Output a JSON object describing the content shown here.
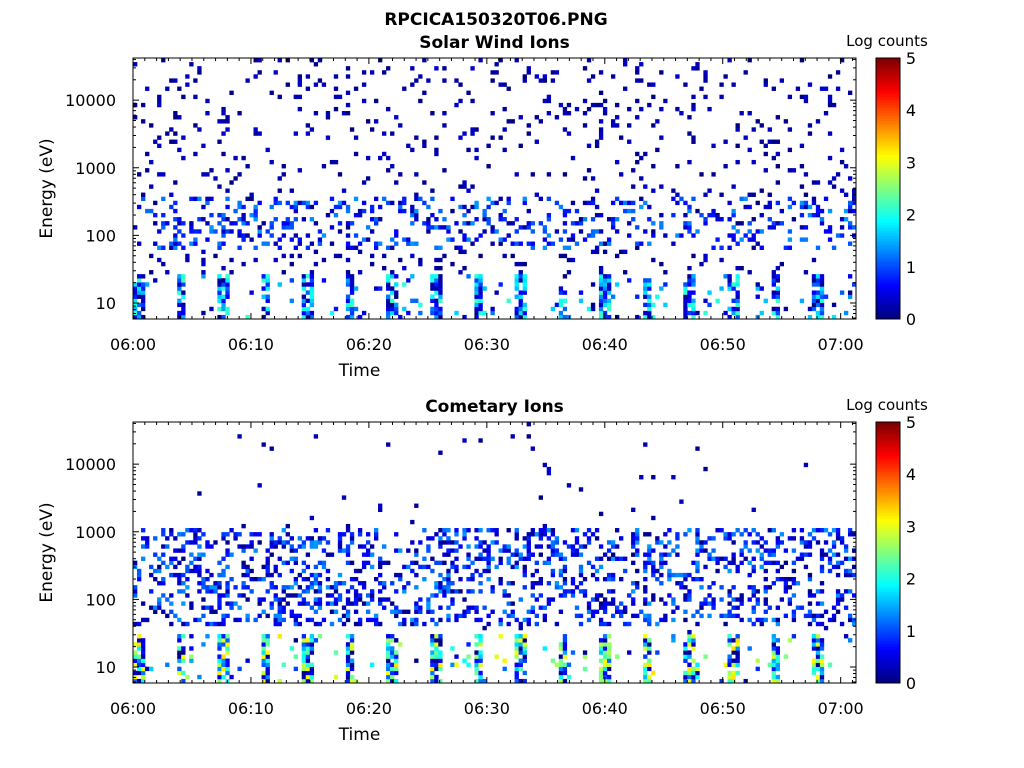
{
  "figure_title": "RPCICA150320T06.PNG",
  "chart_data": [
    {
      "type": "heatmap",
      "title": "Solar Wind Ions",
      "xlabel": "Time",
      "ylabel": "Energy (eV)",
      "x_ticks": [
        "06:00",
        "06:10",
        "06:20",
        "06:30",
        "06:40",
        "06:50",
        "07:00"
      ],
      "x_range_minutes": [
        0,
        61.3
      ],
      "y_scale": "log",
      "y_range_eV": [
        5.8,
        42000
      ],
      "y_ticks": [
        10,
        100,
        1000,
        10000
      ],
      "y_tick_labels": [
        "10",
        "100",
        "1000",
        "10000"
      ],
      "colorbar": {
        "label": "Log counts",
        "range": [
          0,
          5
        ],
        "ticks": [
          "0",
          "1",
          "2",
          "3",
          "4",
          "5"
        ],
        "colormap": "jet"
      },
      "pattern": {
        "low_band_eV": [
          6,
          28
        ],
        "low_band_max_log": 2.2,
        "mid_band_eV": [
          60,
          400
        ],
        "mid_band_density": 0.22,
        "high_band_density": 0.07,
        "typical_log_counts": [
          0,
          2.3
        ]
      }
    },
    {
      "type": "heatmap",
      "title": "Cometary Ions",
      "xlabel": "Time",
      "ylabel": "Energy (eV)",
      "x_ticks": [
        "06:00",
        "06:10",
        "06:20",
        "06:30",
        "06:40",
        "06:50",
        "07:00"
      ],
      "x_range_minutes": [
        0,
        61.3
      ],
      "y_scale": "log",
      "y_range_eV": [
        5.8,
        42000
      ],
      "y_ticks": [
        10,
        100,
        1000,
        10000
      ],
      "y_tick_labels": [
        "10",
        "100",
        "1000",
        "10000"
      ],
      "colorbar": {
        "label": "Log counts",
        "range": [
          0,
          5
        ],
        "ticks": [
          "0",
          "1",
          "2",
          "3",
          "4",
          "5"
        ],
        "colormap": "jet"
      },
      "pattern": {
        "low_band_eV": [
          6,
          30
        ],
        "low_band_max_log": 3.3,
        "mid_band_eV": [
          40,
          1200
        ],
        "mid_band_density": 0.3,
        "high_band_density": 0.01,
        "typical_log_counts": [
          0,
          3.3
        ]
      }
    }
  ]
}
